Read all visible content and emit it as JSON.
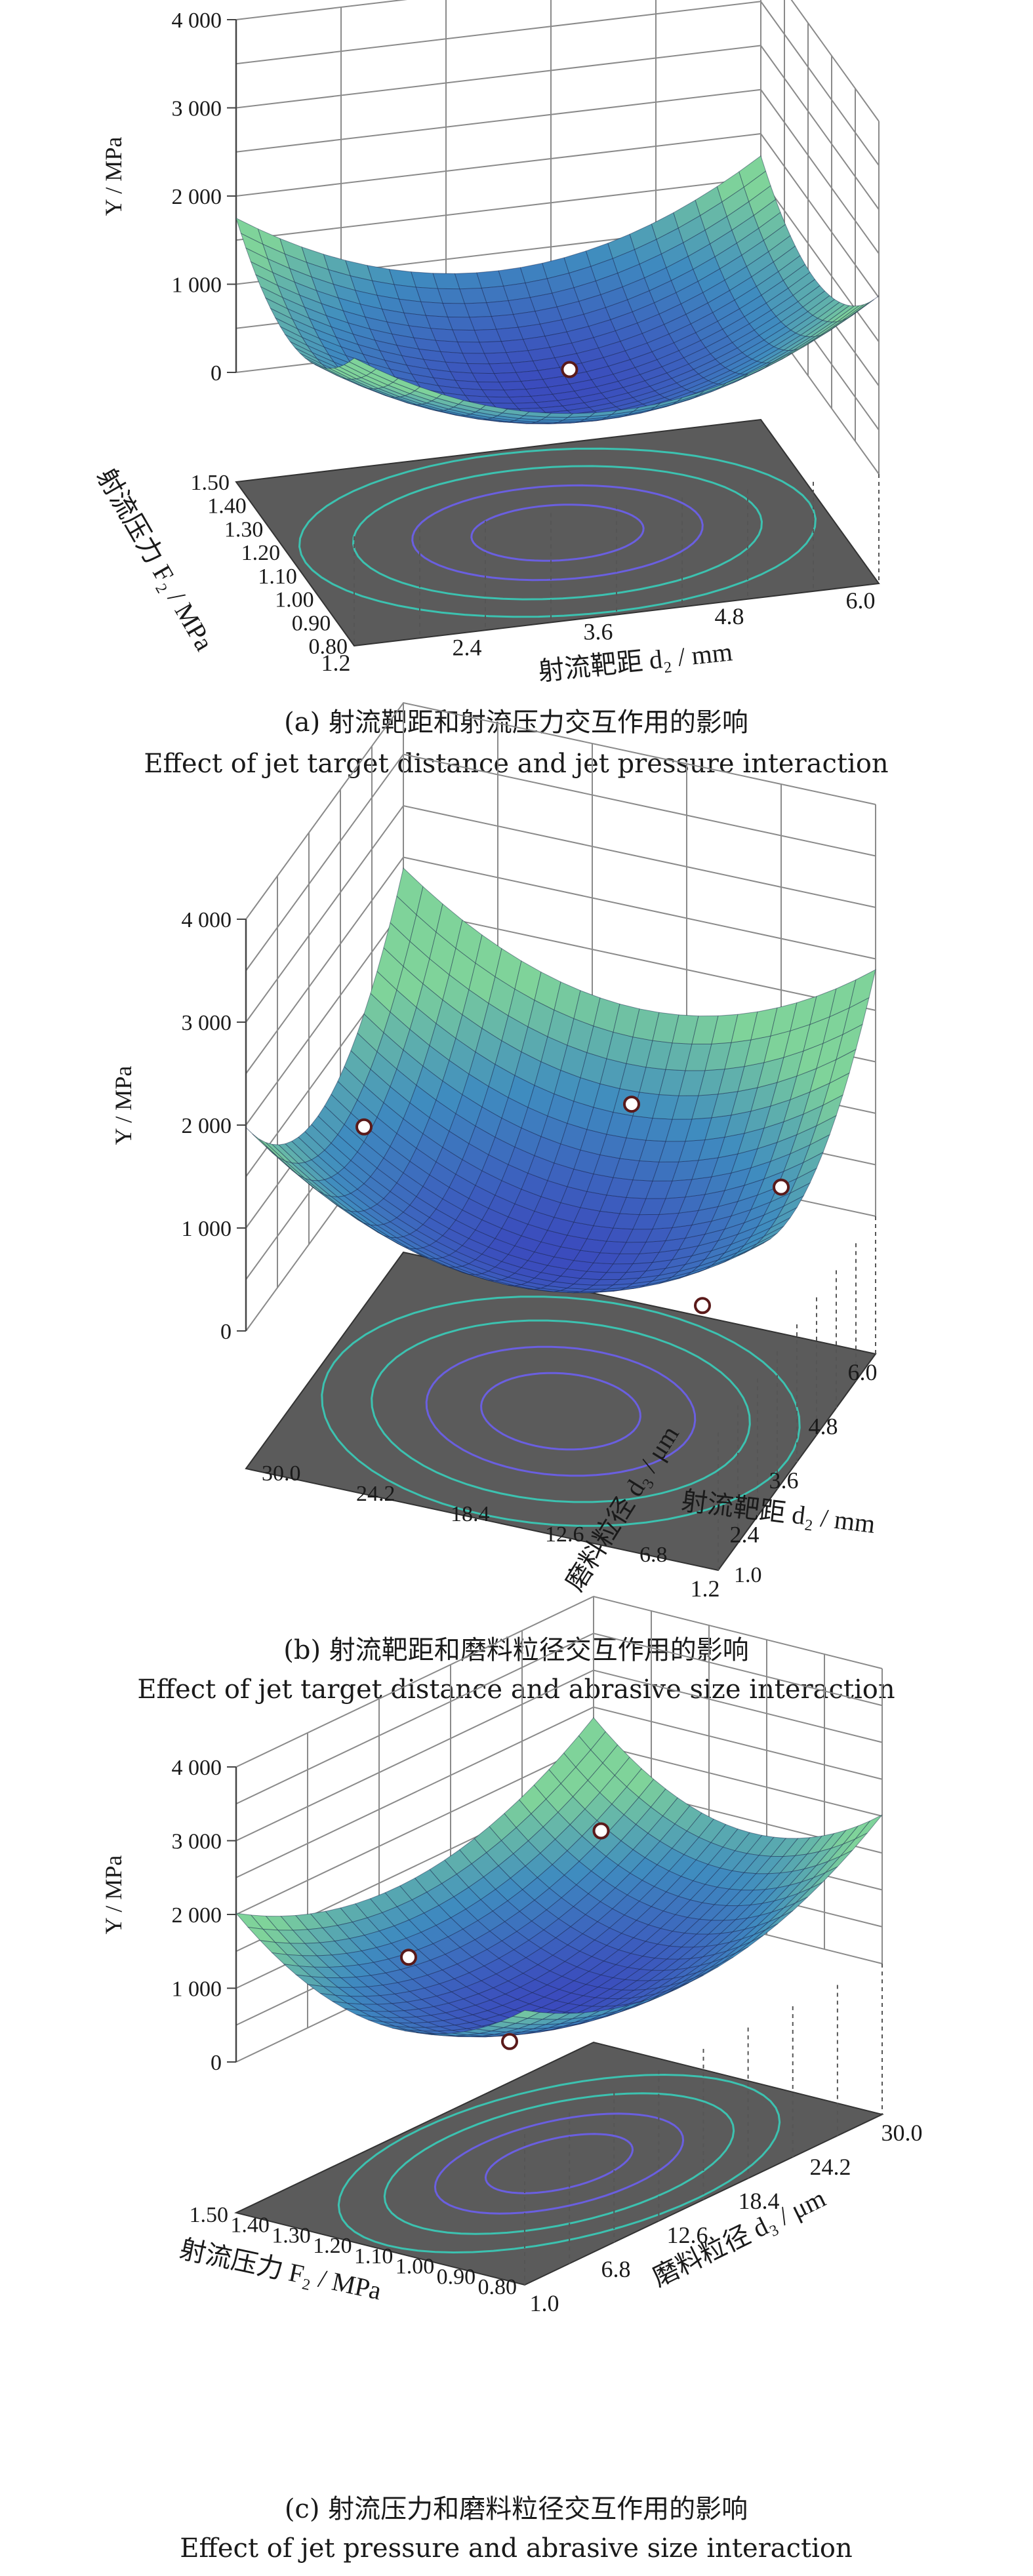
{
  "chart_data": [
    {
      "type": "surface",
      "id": "a",
      "zlabel": "Y / MPa",
      "zlim": [
        0,
        4000
      ],
      "zticks": [
        "0",
        "1 000",
        "2 000",
        "3 000",
        "4 000"
      ],
      "xlabel": "射流靶距 d₂ / mm",
      "xticks": [
        "1.2",
        "2.4",
        "3.6",
        "4.8",
        "6.0"
      ],
      "ylabel": "射流压力 F₂ / MPa",
      "yticks": [
        "0.80",
        "0.90",
        "1.00",
        "1.10",
        "1.20",
        "1.30",
        "1.40",
        "1.50"
      ],
      "caption_cn": "(a) 射流靶距和射流压力交互作用的影响",
      "caption_en": "Effect of jet target distance and jet pressure interaction",
      "observed_points": [
        {
          "z": 350
        }
      ]
    },
    {
      "type": "surface",
      "id": "b",
      "zlabel": "Y / MPa",
      "zlim": [
        0,
        4000
      ],
      "zticks": [
        "0",
        "1 000",
        "2 000",
        "3 000",
        "4 000"
      ],
      "xlabel": "射流靶距 d₂ / mm",
      "xticks": [
        "6.0",
        "4.8",
        "3.6",
        "2.4",
        "1.2"
      ],
      "ylabel": "磨料粒径 d₃ / μm",
      "yticks": [
        "1.0",
        "6.8",
        "12.6",
        "18.4",
        "24.2",
        "30.0"
      ],
      "caption_cn": "(b) 射流靶距和磨料粒径交互作用的影响",
      "caption_en": "Effect of jet target distance and abrasive size interaction",
      "observed_points": [
        {
          "z": 1500
        },
        {
          "z": 700
        },
        {
          "z": 350
        },
        {
          "z": 450
        }
      ]
    },
    {
      "type": "surface",
      "id": "c",
      "zlabel": "Y / MPa",
      "zlim": [
        0,
        4000
      ],
      "zticks": [
        "0",
        "1 000",
        "2 000",
        "3 000",
        "4 000"
      ],
      "xlabel": "磨料粒径 d₃ / μm",
      "xticks": [
        "1.0",
        "6.8",
        "12.6",
        "18.4",
        "24.2",
        "30.0"
      ],
      "ylabel": "射流压力 F₂ / MPa",
      "yticks": [
        "0.80",
        "0.90",
        "1.00",
        "1.10",
        "1.20",
        "1.30",
        "1.40",
        "1.50"
      ],
      "caption_cn": "(c) 射流压力和磨料粒径交互作用的影响",
      "caption_en": "Effect of jet pressure and abrasive size interaction",
      "observed_points": [
        {
          "z": 1300
        },
        {
          "z": 1200
        },
        {
          "z": 500
        }
      ]
    }
  ],
  "colors": {
    "surface_low": "#3b4bbd",
    "surface_mid": "#3f8cbf",
    "surface_high": "#7fd39a",
    "floor": "#5b5b5b",
    "contour": "#6a5fe0",
    "contour_outer": "#3cc2b0"
  }
}
